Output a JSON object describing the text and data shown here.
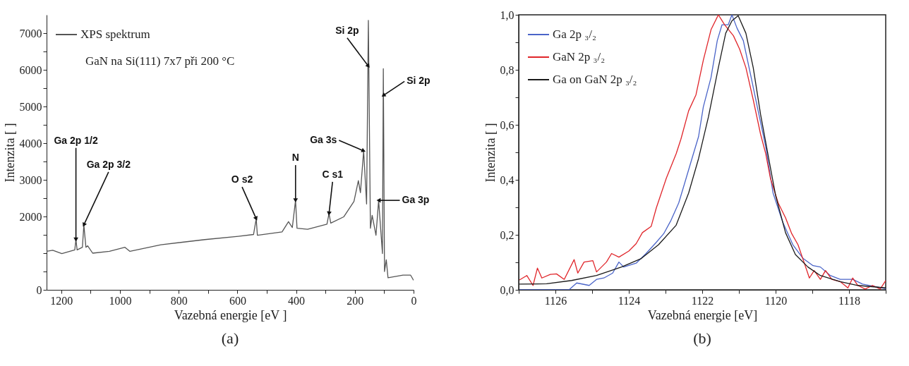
{
  "chart_data": [
    {
      "type": "line",
      "title": "(a)",
      "xlabel": "Vazebná energie [eV ]",
      "ylabel": "Intenzita [ ]",
      "series": [
        {
          "name": "XPS spektrum",
          "color": "#555555",
          "x": [
            1250,
            1229,
            1198,
            1154,
            1150,
            1146,
            1128,
            1123,
            1116,
            1110,
            1093,
            1036,
            983,
            966,
            861,
            711,
            597,
            545,
            536,
            532,
            448,
            426,
            413,
            402,
            397,
            361,
            295,
            288,
            282,
            238,
            203,
            188,
            181,
            170,
            160,
            154,
            147,
            141,
            128,
            119,
            106,
            103,
            99,
            93,
            87,
            36,
            10,
            0
          ],
          "values": [
            1050,
            1080,
            990,
            1090,
            1370,
            1090,
            1160,
            1770,
            1160,
            1200,
            1000,
            1050,
            1160,
            1050,
            1230,
            1370,
            1460,
            1510,
            1940,
            1490,
            1580,
            1860,
            1700,
            2440,
            1680,
            1650,
            1790,
            2080,
            1820,
            1990,
            2410,
            2980,
            2650,
            3790,
            2340,
            7350,
            1680,
            2030,
            1490,
            2440,
            990,
            6030,
            500,
            820,
            330,
            400,
            400,
            260
          ]
        }
      ],
      "xlim": [
        1250,
        0
      ],
      "xticks": [
        1200,
        {
          "value": 1100,
          "label": null
        },
        1000,
        {
          "value": 900,
          "label": null
        },
        800,
        {
          "value": 700,
          "label": null
        },
        600,
        {
          "value": 500,
          "label": null
        },
        400,
        {
          "value": 300,
          "label": null
        },
        200,
        {
          "value": 100,
          "label": null
        },
        0
      ],
      "ylim": [
        0,
        7500
      ],
      "yticks": [
        0,
        {
          "value": 500,
          "label": null
        },
        {
          "value": 1000,
          "label": null
        },
        {
          "value": 1500,
          "label": null
        },
        2000,
        {
          "value": 2500,
          "label": null
        },
        3000,
        {
          "value": 3500,
          "label": null
        },
        4000,
        {
          "value": 4500,
          "label": null
        },
        5000,
        {
          "value": 5500,
          "label": null
        },
        6000,
        {
          "value": 6500,
          "label": null
        },
        7000
      ],
      "legend": "top left",
      "grid": false,
      "annotations": [
        "GaN na Si(111) 7x7 při 200 °C",
        {
          "text": "Ga 2p 1/2",
          "x": 1150,
          "y": 1370
        },
        {
          "text": "Ga 2p 3/2",
          "x": 1123,
          "y": 1770
        },
        {
          "text": "O s2",
          "x": 536,
          "y": 1940
        },
        {
          "text": "N",
          "x": 402,
          "y": 2440
        },
        {
          "text": "C s1",
          "x": 288,
          "y": 2080
        },
        {
          "text": "Ga 3s",
          "x": 170,
          "y": 3790
        },
        {
          "text": "Si 2p",
          "x": 154,
          "y": 6100
        },
        {
          "text": "Si 2p",
          "x": 103,
          "y": 5300
        },
        {
          "text": "Ga 3p",
          "x": 119,
          "y": 2440
        }
      ]
    },
    {
      "type": "line",
      "title": "(b)",
      "xlabel": "Vazebná energie [eV]",
      "ylabel": "Intenzita [ ]",
      "series": [
        {
          "name": "Ga 2p ₃/₂",
          "color": "#4a64c8",
          "x": [
            1126.98,
            1126.24,
            1125.63,
            1125.42,
            1125.08,
            1124.88,
            1124.68,
            1124.44,
            1124.27,
            1124.14,
            1123.8,
            1123.53,
            1123.25,
            1123.05,
            1122.85,
            1122.64,
            1122.44,
            1122.24,
            1122.1,
            1121.97,
            1121.76,
            1121.59,
            1121.46,
            1121.29,
            1121.19,
            1121.05,
            1120.88,
            1120.68,
            1120.47,
            1120.27,
            1120.07,
            1119.8,
            1119.53,
            1119.25,
            1118.98,
            1118.78,
            1118.51,
            1118.24,
            1117.9,
            1117.63,
            1117.29,
            1117.0
          ],
          "values": [
            0.0,
            0.0,
            0.0,
            0.025,
            0.016,
            0.038,
            0.043,
            0.061,
            0.101,
            0.083,
            0.097,
            0.132,
            0.173,
            0.204,
            0.253,
            0.316,
            0.405,
            0.495,
            0.557,
            0.665,
            0.772,
            0.906,
            0.964,
            0.964,
            1.0,
            0.951,
            0.906,
            0.781,
            0.647,
            0.521,
            0.352,
            0.244,
            0.164,
            0.114,
            0.088,
            0.083,
            0.052,
            0.038,
            0.038,
            0.021,
            0.012,
            0.004
          ]
        },
        {
          "name": "GaN 2p ₃/₂",
          "color": "#e0252a",
          "x": [
            1126.98,
            1126.78,
            1126.61,
            1126.49,
            1126.37,
            1126.14,
            1125.97,
            1125.76,
            1125.49,
            1125.39,
            1125.22,
            1124.98,
            1124.88,
            1124.61,
            1124.47,
            1124.27,
            1124.0,
            1123.8,
            1123.63,
            1123.39,
            1123.25,
            1122.98,
            1122.71,
            1122.58,
            1122.37,
            1122.17,
            1121.97,
            1121.76,
            1121.56,
            1121.39,
            1121.15,
            1120.98,
            1120.81,
            1120.61,
            1120.41,
            1120.27,
            1120.14,
            1119.93,
            1119.73,
            1119.56,
            1119.39,
            1119.25,
            1119.08,
            1118.95,
            1118.78,
            1118.64,
            1118.47,
            1118.24,
            1118.03,
            1117.9,
            1117.76,
            1117.56,
            1117.36,
            1117.15,
            1117.0
          ],
          "values": [
            0.036,
            0.052,
            0.016,
            0.079,
            0.043,
            0.056,
            0.058,
            0.038,
            0.11,
            0.061,
            0.101,
            0.106,
            0.065,
            0.101,
            0.132,
            0.119,
            0.141,
            0.168,
            0.208,
            0.231,
            0.298,
            0.405,
            0.495,
            0.548,
            0.651,
            0.709,
            0.835,
            0.946,
            1.0,
            0.964,
            0.924,
            0.875,
            0.808,
            0.691,
            0.566,
            0.495,
            0.405,
            0.316,
            0.262,
            0.204,
            0.164,
            0.11,
            0.043,
            0.07,
            0.038,
            0.07,
            0.038,
            0.03,
            0.007,
            0.043,
            0.016,
            0.003,
            0.016,
            0.003,
            0.034
          ]
        },
        {
          "name": "Ga on GaN 2p ₃/₂",
          "color": "#1a1a1a",
          "x": [
            1126.98,
            1126.24,
            1125.56,
            1124.88,
            1124.2,
            1123.66,
            1123.19,
            1122.71,
            1122.37,
            1122.1,
            1121.83,
            1121.56,
            1121.36,
            1121.19,
            1121.02,
            1120.81,
            1120.61,
            1120.41,
            1120.2,
            1120.0,
            1119.73,
            1119.46,
            1119.12,
            1118.78,
            1118.24,
            1117.76,
            1117.0
          ],
          "values": [
            0.021,
            0.022,
            0.034,
            0.052,
            0.083,
            0.114,
            0.164,
            0.235,
            0.352,
            0.477,
            0.629,
            0.808,
            0.933,
            0.978,
            0.997,
            0.933,
            0.808,
            0.638,
            0.486,
            0.343,
            0.208,
            0.128,
            0.083,
            0.052,
            0.03,
            0.016,
            0.007
          ]
        }
      ],
      "xlim": [
        1127,
        1117
      ],
      "xticks": [
        {
          "value": 1127,
          "label": null
        },
        1126,
        {
          "value": 1125,
          "label": null
        },
        1124,
        {
          "value": 1123,
          "label": null
        },
        1122,
        {
          "value": 1121,
          "label": null
        },
        1120,
        {
          "value": 1119,
          "label": null
        },
        1118,
        {
          "value": 1117,
          "label": null
        }
      ],
      "ylim": [
        0,
        1.0
      ],
      "yticks": [
        {
          "value": 0,
          "label": "0,0"
        },
        {
          "value": 0.1,
          "label": null
        },
        {
          "value": 0.2,
          "label": "0,2"
        },
        {
          "value": 0.3,
          "label": null
        },
        {
          "value": 0.4,
          "label": "0,4"
        },
        {
          "value": 0.5,
          "label": null
        },
        {
          "value": 0.6,
          "label": "0,6"
        },
        {
          "value": 0.7,
          "label": null
        },
        {
          "value": 0.8,
          "label": "0,8"
        },
        {
          "value": 0.9,
          "label": null
        },
        {
          "value": 1.0,
          "label": "1,0"
        }
      ],
      "legend": "top left",
      "grid": false
    }
  ]
}
